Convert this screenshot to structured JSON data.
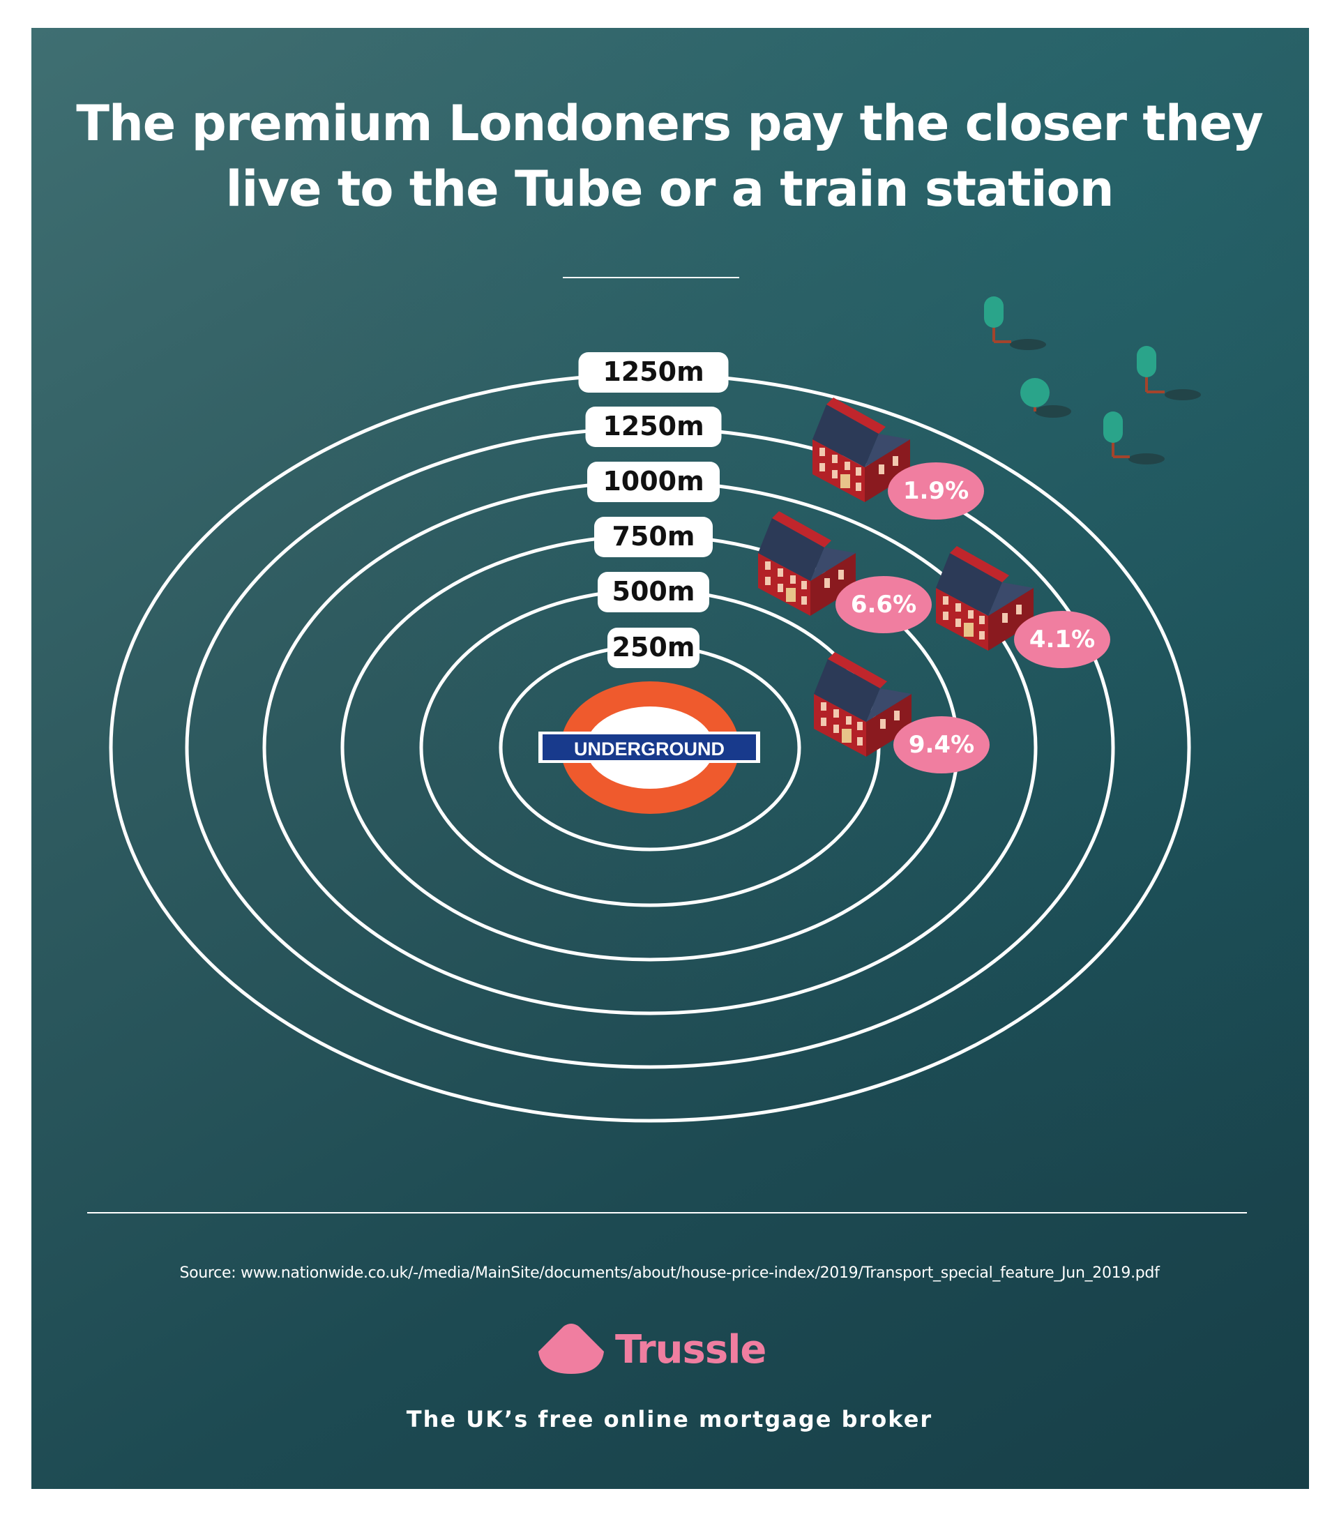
{
  "title_lines": [
    "The premium Londoners pay the closer they",
    "live to the Tube or a train station"
  ],
  "rings": [
    {
      "label": "1250m"
    },
    {
      "label": "1250m"
    },
    {
      "label": "1000m"
    },
    {
      "label": "750m"
    },
    {
      "label": "500m"
    },
    {
      "label": "250m"
    }
  ],
  "station_sign": "UNDERGROUND",
  "premiums": [
    {
      "label": "1.9%"
    },
    {
      "label": "6.6%"
    },
    {
      "label": "4.1%"
    },
    {
      "label": "9.4%"
    }
  ],
  "source": "Source: www.nationwide.co.uk/-/media/MainSite/documents/about/house-price-index/2019/Transport_special_feature_Jun_2019.pdf",
  "brand": {
    "name": "Trussle",
    "tagline": "The UK’s free online mortgage broker"
  },
  "colors": {
    "background": "#2f5b60",
    "accent_pink": "#f07ea0",
    "roundel_red": "#ef5a2d",
    "roundel_blue": "#183a8c",
    "house_red": "#c0262c"
  }
}
